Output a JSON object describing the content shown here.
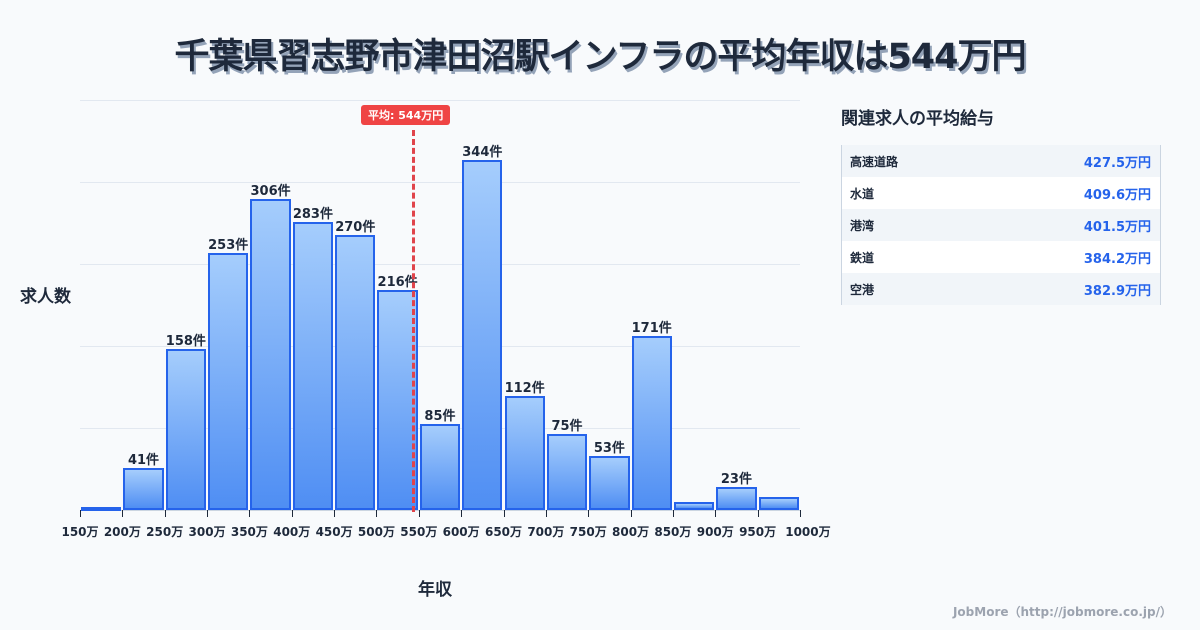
{
  "title": "千葉県習志野市津田沼駅インフラの平均年収は544万円",
  "chart": {
    "ylabel": "求人数",
    "xlabel": "年収",
    "average_badge": "平均: 544万円",
    "tick_labels": [
      "150万",
      "200万",
      "250万",
      "300万",
      "350万",
      "400万",
      "450万",
      "500万",
      "550万",
      "600万",
      "650万",
      "700万",
      "750万",
      "800万",
      "850万",
      "900万",
      "950万",
      "1000万"
    ]
  },
  "bar_labels": [
    "",
    "41件",
    "158件",
    "253件",
    "306件",
    "283件",
    "270件",
    "216件",
    "85件",
    "344件",
    "112件",
    "75件",
    "53件",
    "171件",
    "",
    "23件",
    ""
  ],
  "chart_data": {
    "type": "bar",
    "title": "千葉県習志野市津田沼駅インフラの平均年収は544万円",
    "xlabel": "年収",
    "ylabel": "求人数",
    "categories": [
      "150-200万",
      "200-250万",
      "250-300万",
      "300-350万",
      "350-400万",
      "400-450万",
      "450-500万",
      "500-550万",
      "550-600万",
      "600-650万",
      "650-700万",
      "700-750万",
      "750-800万",
      "800-850万",
      "850-900万",
      "900-950万",
      "950-1000万"
    ],
    "values": [
      3,
      41,
      158,
      253,
      306,
      283,
      270,
      216,
      85,
      344,
      112,
      75,
      53,
      171,
      8,
      23,
      13
    ],
    "unit": "件",
    "average_line": {
      "value": 544,
      "label": "平均: 544万円"
    },
    "ylim": [
      0,
      400
    ],
    "grid": true
  },
  "panel": {
    "title": "関連求人の平均給与",
    "rows": [
      {
        "name": "高速道路",
        "value": "427.5万円"
      },
      {
        "name": "水道",
        "value": "409.6万円"
      },
      {
        "name": "港湾",
        "value": "401.5万円"
      },
      {
        "name": "鉄道",
        "value": "384.2万円"
      },
      {
        "name": "空港",
        "value": "382.9万円"
      }
    ]
  },
  "footer": "JobMore（http://jobmore.co.jp/）",
  "colors": {
    "bar": "#2563eb",
    "average": "#ef4444",
    "value_text": "#2563eb"
  }
}
